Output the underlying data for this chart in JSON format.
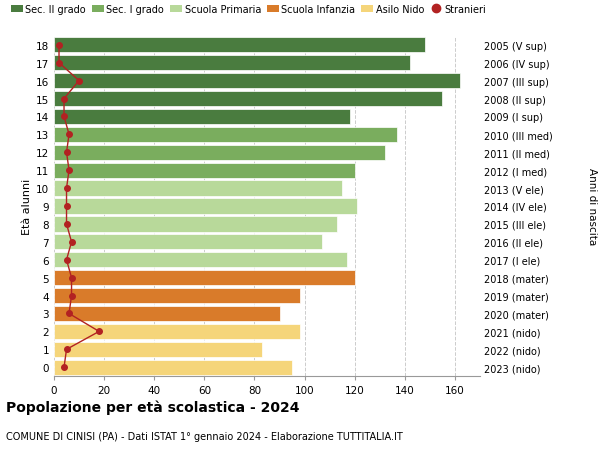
{
  "ages": [
    18,
    17,
    16,
    15,
    14,
    13,
    12,
    11,
    10,
    9,
    8,
    7,
    6,
    5,
    4,
    3,
    2,
    1,
    0
  ],
  "values": [
    148,
    142,
    162,
    155,
    118,
    137,
    132,
    120,
    115,
    121,
    113,
    107,
    117,
    120,
    98,
    90,
    98,
    83,
    95
  ],
  "stranieri": [
    2,
    2,
    10,
    4,
    4,
    6,
    5,
    6,
    5,
    5,
    5,
    7,
    5,
    7,
    7,
    6,
    18,
    5,
    4
  ],
  "right_labels": [
    "2005 (V sup)",
    "2006 (IV sup)",
    "2007 (III sup)",
    "2008 (II sup)",
    "2009 (I sup)",
    "2010 (III med)",
    "2011 (II med)",
    "2012 (I med)",
    "2013 (V ele)",
    "2014 (IV ele)",
    "2015 (III ele)",
    "2016 (II ele)",
    "2017 (I ele)",
    "2018 (mater)",
    "2019 (mater)",
    "2020 (mater)",
    "2021 (nido)",
    "2022 (nido)",
    "2023 (nido)"
  ],
  "bar_colors": [
    "#4a7c3f",
    "#4a7c3f",
    "#4a7c3f",
    "#4a7c3f",
    "#4a7c3f",
    "#7aad5e",
    "#7aad5e",
    "#7aad5e",
    "#b8d99a",
    "#b8d99a",
    "#b8d99a",
    "#b8d99a",
    "#b8d99a",
    "#d97b2a",
    "#d97b2a",
    "#d97b2a",
    "#f5d57a",
    "#f5d57a",
    "#f5d57a"
  ],
  "legend_labels": [
    "Sec. II grado",
    "Sec. I grado",
    "Scuola Primaria",
    "Scuola Infanzia",
    "Asilo Nido",
    "Stranieri"
  ],
  "legend_colors": [
    "#4a7c3f",
    "#7aad5e",
    "#b8d99a",
    "#d97b2a",
    "#f5d57a",
    "#b22222"
  ],
  "xlabel_ticks": [
    0,
    20,
    40,
    60,
    80,
    100,
    120,
    140,
    160
  ],
  "xlim": [
    0,
    170
  ],
  "ylabel_left": "Età alunni",
  "ylabel_right": "Anni di nascita",
  "title": "Popolazione per età scolastica - 2024",
  "subtitle": "COMUNE DI CINISI (PA) - Dati ISTAT 1° gennaio 2024 - Elaborazione TUTTITALIA.IT",
  "background_color": "#ffffff",
  "grid_color": "#cccccc",
  "stranieri_color": "#b22222"
}
